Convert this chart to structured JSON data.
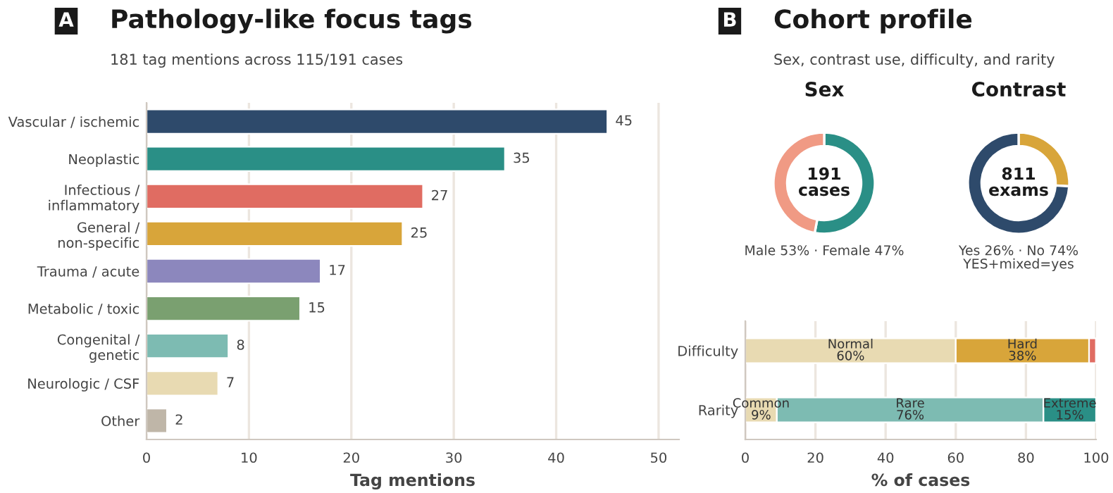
{
  "chart_data": [
    {
      "type": "bar",
      "orientation": "horizontal",
      "title": "Pathology-like focus tags",
      "subtitle": "181 tag mentions across 115/191 cases",
      "annotations": [
        "A"
      ],
      "xlabel": "Tag mentions",
      "categories": [
        "Vascular / ischemic",
        "Neoplastic",
        "Infectious /\ninflammatory",
        "General /\nnon-specific",
        "Trauma / acute",
        "Metabolic / toxic",
        "Congenital /\ngenetic",
        "Neurologic / CSF",
        "Other"
      ],
      "values": [
        45,
        35,
        27,
        25,
        17,
        15,
        8,
        7,
        2
      ],
      "colors": [
        "#2e4a6b",
        "#2a8f86",
        "#e06c62",
        "#d8a53a",
        "#8c87bd",
        "#7aa070",
        "#7dbbb2",
        "#e8dab2",
        "#bfb6a8"
      ],
      "xlim": [
        0,
        52
      ],
      "xticks": [
        0,
        10,
        20,
        30,
        40,
        50
      ],
      "grid": "x",
      "data_labels": true
    },
    {
      "type": "other",
      "title": "Cohort profile",
      "subtitle": "Sex, contrast use, difficulty, and rarity",
      "annotations": [
        "B"
      ]
    },
    {
      "type": "donut",
      "title": "Sex",
      "categories": [
        null,
        null
      ],
      "values": [
        53,
        47
      ],
      "colors": [
        "#2a8f86",
        "#f09a84"
      ],
      "annotations": [
        "191\ncases",
        "Male 53% · Female 47%"
      ]
    },
    {
      "type": "donut",
      "title": "Contrast",
      "categories": [
        null,
        null
      ],
      "values": [
        26,
        74
      ],
      "colors": [
        "#d8a53a",
        "#2e4a6b"
      ],
      "annotations": [
        "811\nexams",
        "Yes 26% · No 74%\nYES+mixed=yes"
      ]
    },
    {
      "type": "bar",
      "orientation": "horizontal",
      "stacked": true,
      "xlabel": "% of cases",
      "categories": [
        "Difficulty",
        "Rarity"
      ],
      "series": [
        {
          "name": "Normal",
          "color": "#e8dab2",
          "values": [
            60,
            null
          ],
          "value_labels": [
            "60%",
            null
          ]
        },
        {
          "name": "Hard",
          "color": "#d8a53a",
          "values": [
            38,
            null
          ],
          "value_labels": [
            "38%",
            null
          ]
        },
        {
          "color": "#e06c62",
          "values": [
            2,
            null
          ]
        },
        {
          "name": "Common",
          "color": "#e8dab2",
          "values": [
            null,
            9
          ],
          "value_labels": [
            null,
            "9%"
          ]
        },
        {
          "name": "Rare",
          "color": "#7dbbb2",
          "values": [
            null,
            76
          ],
          "value_labels": [
            null,
            "76%"
          ]
        },
        {
          "name": "Extreme",
          "color": "#2a8f86",
          "values": [
            null,
            15
          ],
          "value_labels": [
            null,
            "15%"
          ]
        }
      ],
      "xlim": [
        0,
        100
      ],
      "xticks": [
        0,
        20,
        40,
        60,
        80,
        100
      ],
      "grid": "x"
    }
  ]
}
